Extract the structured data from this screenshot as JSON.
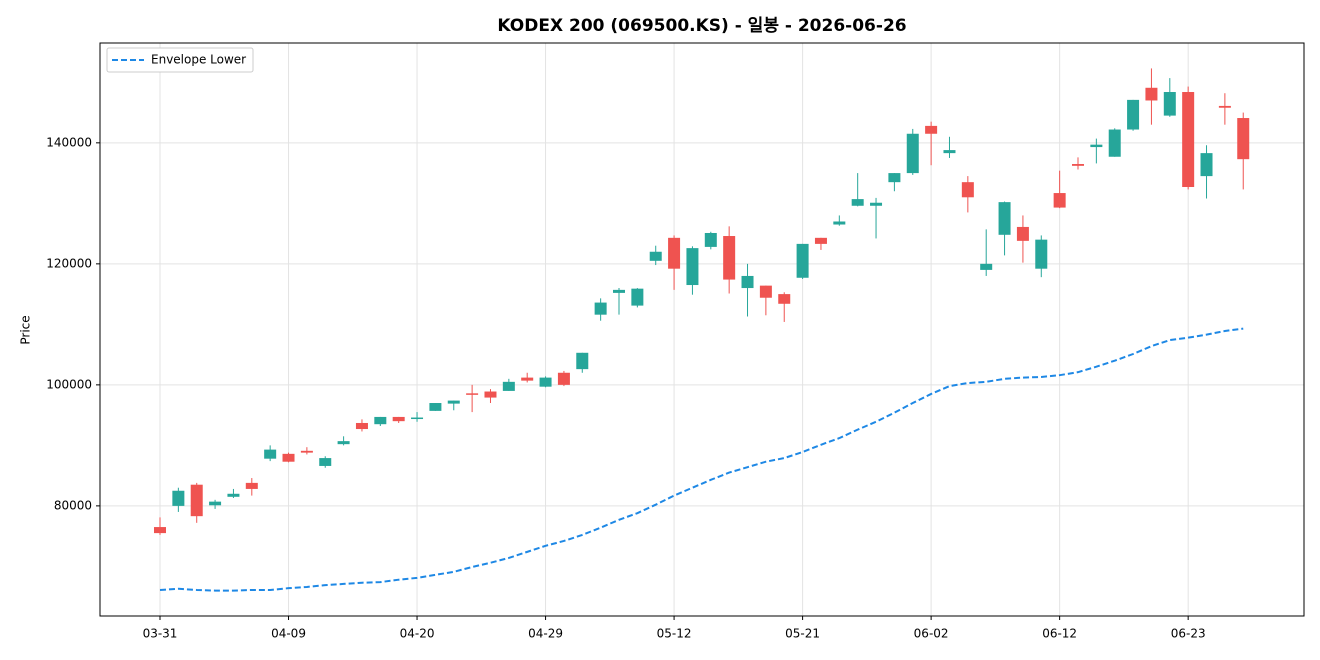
{
  "chart_data": {
    "type": "candlestick",
    "title": "KODEX 200 (069500.KS) - 일봉 - 2026-06-26",
    "y_label": "Price",
    "categories": [
      "03-31",
      null,
      null,
      null,
      null,
      null,
      null,
      "04-09",
      null,
      null,
      null,
      null,
      null,
      null,
      "04-20",
      null,
      null,
      null,
      null,
      null,
      null,
      "04-29",
      null,
      null,
      null,
      null,
      null,
      null,
      "05-12",
      null,
      null,
      null,
      null,
      null,
      null,
      "05-21",
      null,
      null,
      null,
      null,
      null,
      null,
      "06-02",
      null,
      null,
      null,
      null,
      null,
      null,
      "06-12",
      null,
      null,
      null,
      null,
      null,
      null,
      "06-23",
      null,
      null,
      null
    ],
    "open": [
      76500,
      80000,
      83500,
      80100,
      81500,
      83800,
      87800,
      88600,
      89100,
      86600,
      90200,
      93700,
      93500,
      94700,
      94400,
      95700,
      96900,
      98600,
      98900,
      99000,
      101200,
      99700,
      102000,
      102600,
      111600,
      115200,
      113100,
      120500,
      124300,
      116500,
      122800,
      124600,
      116000,
      116400,
      115000,
      117700,
      124300,
      126500,
      129600,
      129600,
      133500,
      135000,
      142800,
      138300,
      133500,
      119000,
      124800,
      126100,
      119200,
      131700,
      136500,
      139300,
      137700,
      142200,
      149100,
      144500,
      148400,
      134500,
      146100,
      144100
    ],
    "high": [
      78100,
      83000,
      83800,
      81000,
      82800,
      84600,
      90000,
      88800,
      89700,
      88200,
      91500,
      94300,
      94700,
      94700,
      95500,
      97000,
      97400,
      100000,
      99300,
      101000,
      102000,
      101400,
      102300,
      105300,
      114300,
      116000,
      116000,
      123000,
      124700,
      122900,
      125300,
      126200,
      120000,
      116400,
      115300,
      123300,
      124300,
      128000,
      135000,
      130900,
      135000,
      142300,
      143500,
      141000,
      134500,
      125700,
      130300,
      128000,
      124700,
      135400,
      137600,
      140700,
      142400,
      147100,
      152300,
      150700,
      149300,
      139600,
      148200,
      145000
    ],
    "low": [
      75200,
      79000,
      77200,
      79500,
      81300,
      81700,
      87400,
      87200,
      88500,
      86300,
      90000,
      92300,
      93200,
      93700,
      93900,
      95700,
      95800,
      95500,
      97000,
      99000,
      100400,
      99600,
      99800,
      102000,
      110600,
      111600,
      112800,
      119800,
      115700,
      114900,
      122400,
      115100,
      111300,
      111500,
      110400,
      117500,
      122300,
      126300,
      129500,
      124200,
      132000,
      134700,
      136300,
      137500,
      128500,
      118000,
      121400,
      120200,
      117800,
      129200,
      135600,
      136600,
      137700,
      142000,
      143000,
      144300,
      132300,
      130800,
      143000,
      132300
    ],
    "close": [
      75500,
      82500,
      78300,
      80700,
      82000,
      82800,
      89300,
      87300,
      88800,
      87900,
      90700,
      92700,
      94700,
      94000,
      94600,
      97000,
      97400,
      98400,
      97900,
      100500,
      100700,
      101200,
      100000,
      105300,
      113600,
      115700,
      115900,
      122000,
      119200,
      122600,
      125100,
      117400,
      118000,
      114400,
      113400,
      123300,
      123300,
      127000,
      130700,
      130100,
      135000,
      141500,
      141500,
      138800,
      131000,
      120000,
      130200,
      123800,
      124000,
      129300,
      136200,
      139700,
      142200,
      147100,
      147000,
      148400,
      132700,
      138300,
      145800,
      137300
    ],
    "up_color": "#26a69a",
    "down_color": "#ef5350",
    "series": [
      {
        "name": "Envelope Lower",
        "color": "#1e88e5",
        "style": "dashed",
        "values": [
          66100,
          66300,
          66100,
          66000,
          66000,
          66100,
          66100,
          66400,
          66600,
          66900,
          67100,
          67300,
          67400,
          67800,
          68100,
          68600,
          69100,
          69900,
          70600,
          71400,
          72400,
          73400,
          74200,
          75200,
          76400,
          77700,
          78800,
          80200,
          81700,
          83000,
          84300,
          85500,
          86400,
          87300,
          87900,
          88900,
          90100,
          91200,
          92600,
          93900,
          95400,
          97000,
          98500,
          99800,
          100300,
          100500,
          101000,
          101200,
          101300,
          101600,
          102100,
          103000,
          104000,
          105100,
          106400,
          107400,
          107800,
          108300,
          108900,
          109300
        ]
      }
    ],
    "ylim": [
      61800,
      156500
    ],
    "yticks": [
      80000,
      100000,
      120000,
      140000
    ],
    "grid": true,
    "legend": "upper left"
  }
}
